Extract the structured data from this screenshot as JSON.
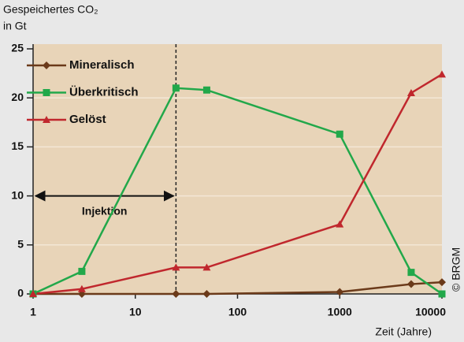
{
  "chart_data": {
    "type": "line",
    "ylabel": [
      "Gespeichertes CO₂",
      "in Gt"
    ],
    "xlabel": "Zeit (Jahre)",
    "credit": "© BRGM",
    "xscale": "log",
    "x": [
      1,
      3,
      25,
      50,
      1000,
      5000,
      10000
    ],
    "series": [
      {
        "name": "Mineralisch",
        "color": "#6b3a1a",
        "marker": "diamond",
        "values": [
          0,
          0,
          0,
          0,
          0.2,
          1.0,
          1.2
        ]
      },
      {
        "name": "Überkritisch",
        "color": "#22a84a",
        "marker": "square",
        "values": [
          0,
          2.3,
          21.0,
          20.8,
          16.3,
          2.2,
          0
        ]
      },
      {
        "name": "Gelöst",
        "color": "#c0272d",
        "marker": "triangle",
        "values": [
          0,
          0.5,
          2.7,
          2.7,
          7.1,
          20.5,
          22.4
        ]
      }
    ],
    "xlim": [
      1,
      10000
    ],
    "xticks": [
      1,
      10,
      100,
      1000,
      10000
    ],
    "ylim": [
      0,
      25
    ],
    "yticks": [
      0,
      5,
      10,
      15,
      20,
      25
    ],
    "grid": true,
    "legend": "upper left",
    "vline_x": 25,
    "annotations": [
      {
        "text": "Injektion",
        "x_start": 1,
        "x_end": 25,
        "y": 10
      }
    ]
  }
}
